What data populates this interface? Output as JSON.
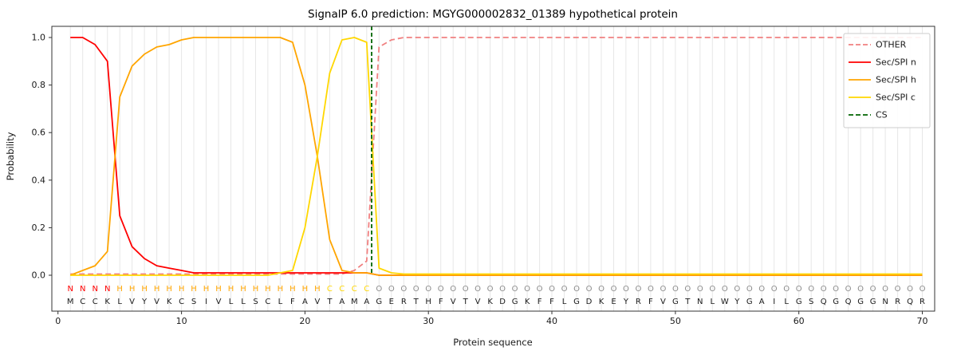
{
  "chart_data": {
    "type": "line",
    "title": "SignalP 6.0 prediction: MGYG000002832_01389 hypothetical protein",
    "xlabel": "Protein sequence",
    "ylabel": "Probability",
    "x_ticks": [
      0,
      10,
      20,
      30,
      40,
      50,
      60,
      70
    ],
    "y_ticks": [
      "0.0",
      "0.2",
      "0.4",
      "0.6",
      "0.8",
      "1.0"
    ],
    "xlim": [
      -0.5,
      71
    ],
    "ylim": [
      0,
      1.05
    ],
    "grid": "vertical-per-residue",
    "grid_color": "#e7e7e7",
    "series": [
      {
        "name": "OTHER",
        "color": "#f08080",
        "dashed": true,
        "values": [
          0.005,
          0.005,
          0.005,
          0.005,
          0.005,
          0.005,
          0.005,
          0.005,
          0.005,
          0.005,
          0.005,
          0.005,
          0.005,
          0.005,
          0.005,
          0.005,
          0.005,
          0.005,
          0.005,
          0.005,
          0.005,
          0.005,
          0.005,
          0.02,
          0.06,
          0.96,
          0.99,
          1.0,
          1.0,
          1.0,
          1.0,
          1.0,
          1.0,
          1.0,
          1.0,
          1.0,
          1.0,
          1.0,
          1.0,
          1.0,
          1.0,
          1.0,
          1.0,
          1.0,
          1.0,
          1.0,
          1.0,
          1.0,
          1.0,
          1.0,
          1.0,
          1.0,
          1.0,
          1.0,
          1.0,
          1.0,
          1.0,
          1.0,
          1.0,
          1.0,
          1.0,
          1.0,
          1.0,
          1.0,
          1.0,
          1.0,
          1.0,
          1.0,
          1.0,
          1.0
        ]
      },
      {
        "name": "Sec/SPI n",
        "color": "#ff0000",
        "dashed": false,
        "values": [
          1.0,
          1.0,
          0.97,
          0.9,
          0.25,
          0.12,
          0.07,
          0.04,
          0.03,
          0.02,
          0.01,
          0.01,
          0.01,
          0.01,
          0.01,
          0.01,
          0.01,
          0.01,
          0.01,
          0.01,
          0.01,
          0.01,
          0.01,
          0.01,
          0.01,
          0.0,
          0.0,
          0.0,
          0.0,
          0.0,
          0.0,
          0.0,
          0.0,
          0.0,
          0.0,
          0.0,
          0.0,
          0.0,
          0.0,
          0.0,
          0.0,
          0.0,
          0.0,
          0.0,
          0.0,
          0.0,
          0.0,
          0.0,
          0.0,
          0.0,
          0.0,
          0.0,
          0.0,
          0.0,
          0.0,
          0.0,
          0.0,
          0.0,
          0.0,
          0.0,
          0.0,
          0.0,
          0.0,
          0.0,
          0.0,
          0.0,
          0.0,
          0.0,
          0.0,
          0.0
        ]
      },
      {
        "name": "Sec/SPI h",
        "color": "#ffa500",
        "dashed": false,
        "values": [
          0.0,
          0.02,
          0.04,
          0.1,
          0.75,
          0.88,
          0.93,
          0.96,
          0.97,
          0.99,
          1.0,
          1.0,
          1.0,
          1.0,
          1.0,
          1.0,
          1.0,
          1.0,
          0.98,
          0.8,
          0.5,
          0.15,
          0.02,
          0.01,
          0.01,
          0.0,
          0.0,
          0.0,
          0.0,
          0.0,
          0.0,
          0.0,
          0.0,
          0.0,
          0.0,
          0.0,
          0.0,
          0.0,
          0.0,
          0.0,
          0.0,
          0.0,
          0.0,
          0.0,
          0.0,
          0.0,
          0.0,
          0.0,
          0.0,
          0.0,
          0.0,
          0.0,
          0.0,
          0.0,
          0.0,
          0.0,
          0.0,
          0.0,
          0.0,
          0.0,
          0.0,
          0.0,
          0.0,
          0.0,
          0.0,
          0.0,
          0.0,
          0.0,
          0.0,
          0.0
        ]
      },
      {
        "name": "Sec/SPI c",
        "color": "#ffd700",
        "dashed": false,
        "values": [
          0.0,
          0.0,
          0.0,
          0.0,
          0.0,
          0.0,
          0.0,
          0.0,
          0.0,
          0.0,
          0.0,
          0.0,
          0.0,
          0.0,
          0.0,
          0.0,
          0.0,
          0.01,
          0.02,
          0.2,
          0.5,
          0.85,
          0.99,
          1.0,
          0.98,
          0.03,
          0.01,
          0.005,
          0.005,
          0.005,
          0.005,
          0.005,
          0.005,
          0.005,
          0.005,
          0.005,
          0.005,
          0.005,
          0.005,
          0.005,
          0.005,
          0.005,
          0.005,
          0.005,
          0.005,
          0.005,
          0.005,
          0.005,
          0.005,
          0.005,
          0.005,
          0.005,
          0.005,
          0.005,
          0.005,
          0.005,
          0.005,
          0.005,
          0.005,
          0.005,
          0.005,
          0.005,
          0.005,
          0.005,
          0.005,
          0.005,
          0.005,
          0.005,
          0.005,
          0.005
        ]
      }
    ],
    "cs": {
      "label": "CS",
      "position": 25.4,
      "color": "#006400",
      "dashed": true
    },
    "legend": {
      "position": "upper right",
      "entries": [
        {
          "label": "OTHER",
          "color": "#f08080",
          "dashed": true
        },
        {
          "label": "Sec/SPI n",
          "color": "#ff0000",
          "dashed": false
        },
        {
          "label": "Sec/SPI h",
          "color": "#ffa500",
          "dashed": false
        },
        {
          "label": "Sec/SPI c",
          "color": "#ffd700",
          "dashed": false
        },
        {
          "label": "CS",
          "color": "#006400",
          "dashed": true
        }
      ]
    },
    "sequence": "MCCKLVYVKCSIVLLSCLFAVTAMAGERTHFVTVKDGKFFLGDKEYRFVGTNLWYGAILGSQGQGGNRQR",
    "region_per_position": "NNNNHHHHHHHHHHHHHHHHHCCCCOOOOOOOOOOOOOOOOOOOOOOOOOOOOOOOOOOOOOOOOOOOOO",
    "region_colors": {
      "N": "#ff0000",
      "H": "#ffa500",
      "C": "#ffd700",
      "O": "#8c8c8c"
    },
    "sequence_color": "#1a1a1a"
  }
}
